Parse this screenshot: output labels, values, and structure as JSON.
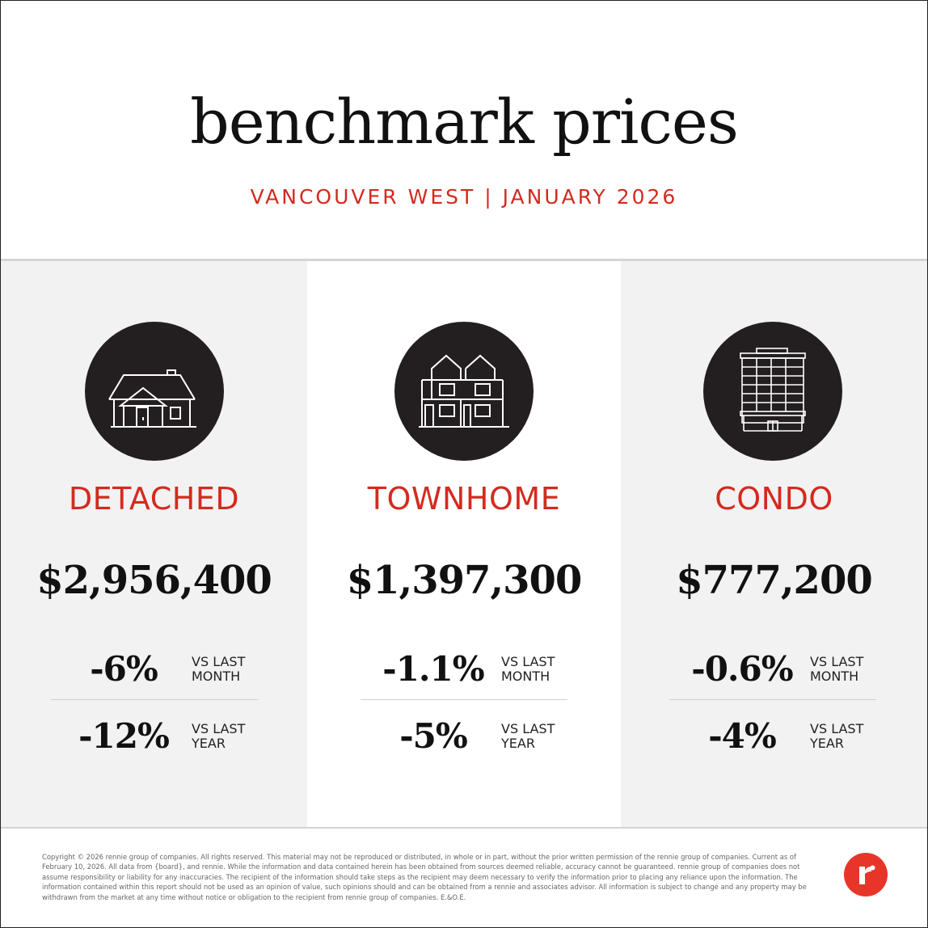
{
  "header": {
    "title": "benchmark prices",
    "subtitle": "VANCOUVER WEST | JANUARY 2026"
  },
  "colors": {
    "accent": "#d42a1f",
    "icon_circle": "#231f20",
    "panel_gray": "#f2f2f2",
    "logo": "#e8352a"
  },
  "categories": [
    {
      "label": "DETACHED",
      "icon": "detached-house-icon",
      "price": "$2,956,400",
      "monthly_change": "-6%",
      "monthly_label_1": "VS LAST",
      "monthly_label_2": "MONTH",
      "yearly_change": "-12%",
      "yearly_label_1": "VS LAST",
      "yearly_label_2": "YEAR"
    },
    {
      "label": "TOWNHOME",
      "icon": "townhome-icon",
      "price": "$1,397,300",
      "monthly_change": "-1.1%",
      "monthly_label_1": "VS LAST",
      "monthly_label_2": "MONTH",
      "yearly_change": "-5%",
      "yearly_label_1": "VS LAST",
      "yearly_label_2": "YEAR"
    },
    {
      "label": "CONDO",
      "icon": "condo-tower-icon",
      "price": "$777,200",
      "monthly_change": "-0.6%",
      "monthly_label_1": "VS LAST",
      "monthly_label_2": "MONTH",
      "yearly_change": "-4%",
      "yearly_label_1": "VS LAST",
      "yearly_label_2": "YEAR"
    }
  ],
  "footer": {
    "disclaimer": "Copyright © 2026 rennie group of companies. All rights reserved. This material may not be reproduced or distributed, in whole or in part, without the prior written permission of the rennie group of companies. Current as of February 10, 2026. All data from {board}, and rennie. While the information and data contained herein has been obtained from sources deemed reliable, accuracy cannot be guaranteed. rennie group of companies does not assume responsibility or liability for any inaccuracies. The recipient of the information should take steps as the recipient may deem necessary to verify the information prior to placing any reliance upon the information. The information contained within this report should not be used as an opinion of value, such opinions should and can be obtained from a rennie and associates advisor. All information is subject to change and any property may be withdrawn from the market at any time without notice or obligation to the recipient from rennie group of companies. E.&O.E.",
    "logo_icon": "rennie-logo-icon"
  }
}
